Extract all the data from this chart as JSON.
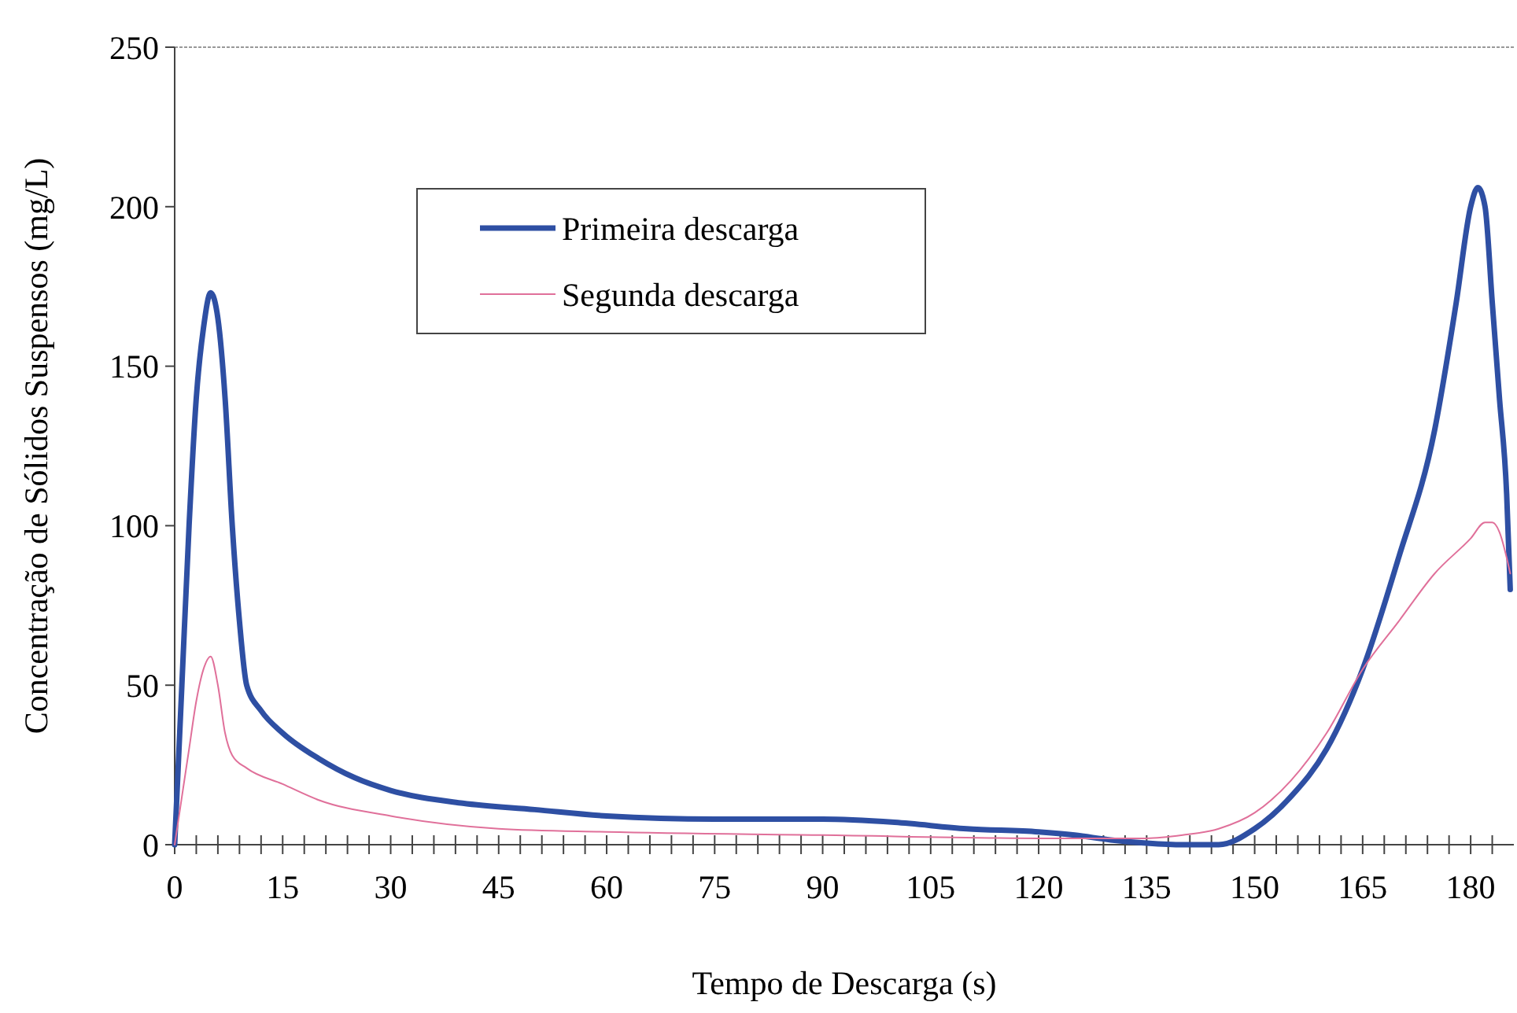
{
  "chart_data": {
    "type": "line",
    "xlabel": "Tempo de Descarga (s)",
    "ylabel": "Concentração de Sólidos Suspensos (mg/L)",
    "xlim": [
      0,
      186
    ],
    "ylim": [
      0,
      250
    ],
    "xticks": [
      0,
      {
        "value": 3,
        "label": null
      },
      {
        "value": 6,
        "label": null
      },
      {
        "value": 9,
        "label": null
      },
      {
        "value": 12,
        "label": null
      },
      15,
      {
        "value": 18,
        "label": null
      },
      {
        "value": 21,
        "label": null
      },
      {
        "value": 24,
        "label": null
      },
      {
        "value": 27,
        "label": null
      },
      30,
      {
        "value": 33,
        "label": null
      },
      {
        "value": 36,
        "label": null
      },
      {
        "value": 39,
        "label": null
      },
      {
        "value": 42,
        "label": null
      },
      45,
      {
        "value": 48,
        "label": null
      },
      {
        "value": 51,
        "label": null
      },
      {
        "value": 54,
        "label": null
      },
      {
        "value": 57,
        "label": null
      },
      60,
      {
        "value": 63,
        "label": null
      },
      {
        "value": 66,
        "label": null
      },
      {
        "value": 69,
        "label": null
      },
      {
        "value": 72,
        "label": null
      },
      75,
      {
        "value": 78,
        "label": null
      },
      {
        "value": 81,
        "label": null
      },
      {
        "value": 84,
        "label": null
      },
      {
        "value": 87,
        "label": null
      },
      90,
      {
        "value": 93,
        "label": null
      },
      {
        "value": 96,
        "label": null
      },
      {
        "value": 99,
        "label": null
      },
      {
        "value": 102,
        "label": null
      },
      105,
      {
        "value": 108,
        "label": null
      },
      {
        "value": 111,
        "label": null
      },
      {
        "value": 114,
        "label": null
      },
      {
        "value": 117,
        "label": null
      },
      120,
      {
        "value": 123,
        "label": null
      },
      {
        "value": 126,
        "label": null
      },
      {
        "value": 129,
        "label": null
      },
      {
        "value": 132,
        "label": null
      },
      135,
      {
        "value": 138,
        "label": null
      },
      {
        "value": 141,
        "label": null
      },
      {
        "value": 144,
        "label": null
      },
      {
        "value": 147,
        "label": null
      },
      150,
      {
        "value": 153,
        "label": null
      },
      {
        "value": 156,
        "label": null
      },
      {
        "value": 159,
        "label": null
      },
      {
        "value": 162,
        "label": null
      },
      165,
      {
        "value": 168,
        "label": null
      },
      {
        "value": 171,
        "label": null
      },
      {
        "value": 174,
        "label": null
      },
      {
        "value": 177,
        "label": null
      },
      180,
      {
        "value": 183,
        "label": null
      }
    ],
    "yticks": [
      0,
      50,
      100,
      150,
      200,
      250
    ],
    "legend": "top",
    "grid": false,
    "marker": "none",
    "series": [
      {
        "name": "Primeira descarga",
        "color": "#2e4fa3",
        "x": [
          0,
          1,
          2,
          3,
          4,
          5,
          6,
          7,
          8,
          9,
          10,
          12,
          15,
          20,
          25,
          30,
          40,
          50,
          60,
          75,
          90,
          100,
          110,
          120,
          125,
          130,
          135,
          140,
          145,
          150,
          155,
          160,
          165,
          170,
          175,
          178,
          180,
          181,
          182,
          183,
          184,
          185,
          185.5
        ],
        "values": [
          0,
          50,
          100,
          140,
          162,
          173,
          165,
          140,
          100,
          70,
          50,
          42,
          35,
          27,
          21,
          17,
          13,
          11,
          9,
          8,
          8,
          7,
          5,
          4,
          3,
          1.5,
          0.5,
          0,
          0,
          5,
          15,
          30,
          55,
          90,
          130,
          170,
          200,
          206,
          200,
          170,
          140,
          110,
          80
        ]
      },
      {
        "name": "Segunda descarga",
        "color": "#e0709a",
        "x": [
          0,
          1,
          2,
          3,
          4,
          5,
          6,
          7,
          8,
          10,
          15,
          20,
          30,
          45,
          60,
          90,
          120,
          135,
          140,
          145,
          150,
          155,
          160,
          165,
          170,
          175,
          180,
          182,
          183,
          184,
          185,
          185.5
        ],
        "values": [
          0,
          15,
          30,
          45,
          55,
          59,
          50,
          35,
          28,
          24,
          19,
          14,
          9,
          5,
          4,
          3,
          2,
          2,
          3,
          5,
          10,
          20,
          35,
          55,
          70,
          85,
          96,
          101,
          101,
          98,
          90,
          85
        ]
      }
    ]
  }
}
